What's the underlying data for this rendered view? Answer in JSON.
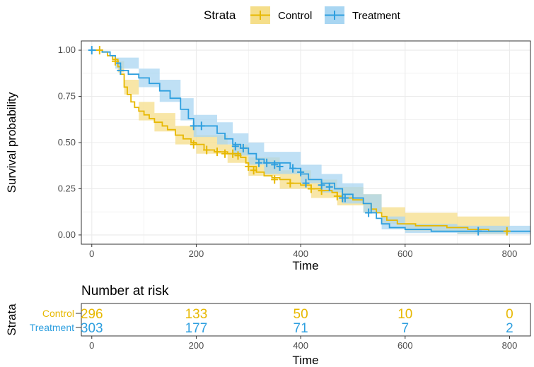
{
  "chart_data": [
    {
      "type": "line",
      "subtype": "kaplan-meier",
      "title": "",
      "xlabel": "Time",
      "ylabel": "Survival probability",
      "xlim": [
        -20,
        840
      ],
      "ylim": [
        -0.05,
        1.05
      ],
      "x_ticks": [
        "0",
        "200",
        "400",
        "600",
        "800"
      ],
      "y_ticks": [
        "0.00",
        "0.25",
        "0.50",
        "0.75",
        "1.00"
      ],
      "grid": true,
      "legend": {
        "title": "Strata",
        "position": "top",
        "entries": [
          "Control",
          "Treatment"
        ]
      },
      "series": [
        {
          "name": "Control",
          "color": "#E7B800",
          "band": "#F5DE8A",
          "steps": [
            [
              0,
              1.0
            ],
            [
              20,
              0.99
            ],
            [
              30,
              0.97
            ],
            [
              40,
              0.95
            ],
            [
              50,
              0.91
            ],
            [
              55,
              0.87
            ],
            [
              62,
              0.8
            ],
            [
              68,
              0.76
            ],
            [
              75,
              0.72
            ],
            [
              82,
              0.69
            ],
            [
              90,
              0.67
            ],
            [
              100,
              0.65
            ],
            [
              110,
              0.63
            ],
            [
              120,
              0.61
            ],
            [
              135,
              0.59
            ],
            [
              145,
              0.57
            ],
            [
              160,
              0.54
            ],
            [
              175,
              0.52
            ],
            [
              190,
              0.5
            ],
            [
              200,
              0.49
            ],
            [
              215,
              0.46
            ],
            [
              235,
              0.45
            ],
            [
              260,
              0.44
            ],
            [
              285,
              0.42
            ],
            [
              295,
              0.39
            ],
            [
              300,
              0.37
            ],
            [
              315,
              0.34
            ],
            [
              330,
              0.32
            ],
            [
              345,
              0.31
            ],
            [
              360,
              0.3
            ],
            [
              380,
              0.28
            ],
            [
              400,
              0.27
            ],
            [
              420,
              0.25
            ],
            [
              440,
              0.24
            ],
            [
              460,
              0.23
            ],
            [
              470,
              0.21
            ],
            [
              480,
              0.2
            ],
            [
              500,
              0.19
            ],
            [
              520,
              0.17
            ],
            [
              535,
              0.14
            ],
            [
              545,
              0.12
            ],
            [
              555,
              0.1
            ],
            [
              565,
              0.08
            ],
            [
              585,
              0.06
            ],
            [
              620,
              0.05
            ],
            [
              680,
              0.04
            ],
            [
              720,
              0.03
            ],
            [
              760,
              0.02
            ],
            [
              800,
              0.02
            ]
          ],
          "censor": [
            [
              15,
              1.0
            ],
            [
              45,
              0.94
            ],
            [
              195,
              0.49
            ],
            [
              220,
              0.46
            ],
            [
              240,
              0.45
            ],
            [
              255,
              0.44
            ],
            [
              270,
              0.44
            ],
            [
              280,
              0.43
            ],
            [
              300,
              0.37
            ],
            [
              310,
              0.35
            ],
            [
              350,
              0.3
            ],
            [
              380,
              0.28
            ],
            [
              420,
              0.25
            ],
            [
              440,
              0.24
            ],
            [
              470,
              0.21
            ],
            [
              480,
              0.2
            ],
            [
              795,
              0.02
            ]
          ],
          "ci_lower": [
            [
              0,
              1.0
            ],
            [
              50,
              0.88
            ],
            [
              62,
              0.76
            ],
            [
              90,
              0.62
            ],
            [
              120,
              0.56
            ],
            [
              160,
              0.49
            ],
            [
              200,
              0.44
            ],
            [
              260,
              0.39
            ],
            [
              300,
              0.32
            ],
            [
              360,
              0.25
            ],
            [
              420,
              0.2
            ],
            [
              470,
              0.16
            ],
            [
              520,
              0.12
            ],
            [
              555,
              0.06
            ],
            [
              600,
              0.02
            ],
            [
              700,
              0.005
            ],
            [
              800,
              0.0
            ]
          ],
          "ci_upper": [
            [
              0,
              1.0
            ],
            [
              50,
              0.94
            ],
            [
              62,
              0.84
            ],
            [
              90,
              0.72
            ],
            [
              120,
              0.66
            ],
            [
              160,
              0.59
            ],
            [
              200,
              0.54
            ],
            [
              260,
              0.49
            ],
            [
              300,
              0.42
            ],
            [
              360,
              0.35
            ],
            [
              420,
              0.3
            ],
            [
              470,
              0.26
            ],
            [
              520,
              0.22
            ],
            [
              555,
              0.15
            ],
            [
              600,
              0.12
            ],
            [
              700,
              0.1
            ],
            [
              800,
              0.08
            ]
          ]
        },
        {
          "name": "Treatment",
          "color": "#2E9FDF",
          "band": "#A9D6F2",
          "steps": [
            [
              0,
              1.0
            ],
            [
              20,
              0.99
            ],
            [
              35,
              0.97
            ],
            [
              45,
              0.93
            ],
            [
              55,
              0.89
            ],
            [
              70,
              0.87
            ],
            [
              90,
              0.85
            ],
            [
              110,
              0.82
            ],
            [
              130,
              0.78
            ],
            [
              150,
              0.74
            ],
            [
              170,
              0.68
            ],
            [
              185,
              0.63
            ],
            [
              195,
              0.59
            ],
            [
              240,
              0.55
            ],
            [
              255,
              0.52
            ],
            [
              270,
              0.49
            ],
            [
              285,
              0.47
            ],
            [
              300,
              0.44
            ],
            [
              315,
              0.41
            ],
            [
              330,
              0.39
            ],
            [
              380,
              0.36
            ],
            [
              400,
              0.33
            ],
            [
              415,
              0.3
            ],
            [
              440,
              0.28
            ],
            [
              465,
              0.25
            ],
            [
              480,
              0.22
            ],
            [
              500,
              0.2
            ],
            [
              520,
              0.17
            ],
            [
              535,
              0.12
            ],
            [
              545,
              0.09
            ],
            [
              555,
              0.06
            ],
            [
              570,
              0.04
            ],
            [
              600,
              0.03
            ],
            [
              650,
              0.02
            ],
            [
              700,
              0.02
            ],
            [
              840,
              0.02
            ]
          ],
          "censor": [
            [
              0,
              1.0
            ],
            [
              55,
              0.89
            ],
            [
              195,
              0.59
            ],
            [
              210,
              0.59
            ],
            [
              275,
              0.48
            ],
            [
              290,
              0.47
            ],
            [
              320,
              0.39
            ],
            [
              335,
              0.39
            ],
            [
              350,
              0.38
            ],
            [
              360,
              0.37
            ],
            [
              385,
              0.36
            ],
            [
              400,
              0.34
            ],
            [
              410,
              0.28
            ],
            [
              440,
              0.27
            ],
            [
              455,
              0.26
            ],
            [
              480,
              0.2
            ],
            [
              485,
              0.2
            ],
            [
              530,
              0.12
            ],
            [
              740,
              0.02
            ]
          ],
          "ci_lower": [
            [
              0,
              1.0
            ],
            [
              45,
              0.9
            ],
            [
              90,
              0.8
            ],
            [
              130,
              0.72
            ],
            [
              170,
              0.62
            ],
            [
              195,
              0.53
            ],
            [
              240,
              0.49
            ],
            [
              270,
              0.43
            ],
            [
              300,
              0.38
            ],
            [
              330,
              0.33
            ],
            [
              400,
              0.28
            ],
            [
              440,
              0.23
            ],
            [
              480,
              0.17
            ],
            [
              520,
              0.12
            ],
            [
              555,
              0.03
            ],
            [
              600,
              0.01
            ],
            [
              700,
              0.005
            ],
            [
              840,
              0.0
            ]
          ],
          "ci_upper": [
            [
              0,
              1.0
            ],
            [
              45,
              0.96
            ],
            [
              90,
              0.9
            ],
            [
              130,
              0.84
            ],
            [
              170,
              0.74
            ],
            [
              195,
              0.65
            ],
            [
              240,
              0.61
            ],
            [
              270,
              0.55
            ],
            [
              300,
              0.5
            ],
            [
              330,
              0.45
            ],
            [
              400,
              0.38
            ],
            [
              440,
              0.33
            ],
            [
              480,
              0.28
            ],
            [
              520,
              0.22
            ],
            [
              555,
              0.1
            ],
            [
              600,
              0.06
            ],
            [
              700,
              0.05
            ],
            [
              840,
              0.04
            ]
          ]
        }
      ]
    },
    {
      "type": "table",
      "title": "Number at risk",
      "xlabel": "Time",
      "ylabel": "Strata",
      "x_ticks": [
        "0",
        "200",
        "400",
        "600",
        "800"
      ],
      "rows": [
        {
          "name": "Control",
          "color": "#E7B800",
          "values": [
            "296",
            "133",
            "50",
            "10",
            "0"
          ]
        },
        {
          "name": "Treatment",
          "color": "#2E9FDF",
          "values": [
            "303",
            "177",
            "71",
            "7",
            "2"
          ]
        }
      ]
    }
  ]
}
